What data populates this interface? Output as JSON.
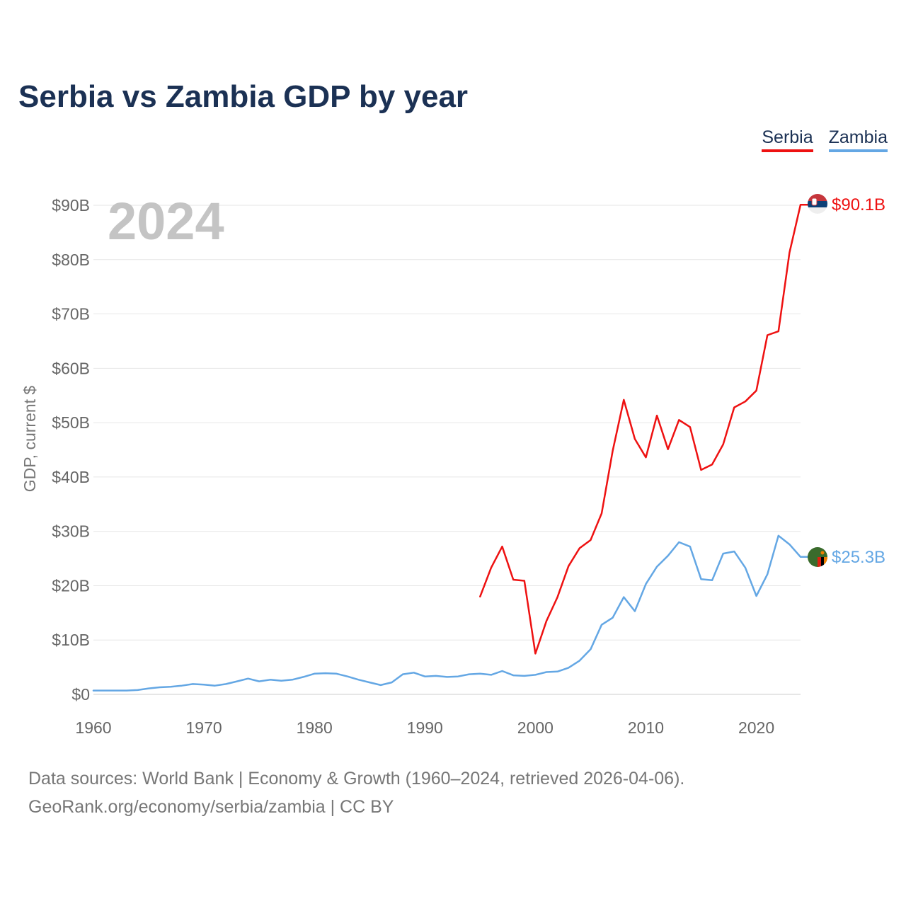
{
  "title": "Serbia vs Zambia GDP by year",
  "legend": {
    "serbia": "Serbia",
    "zambia": "Zambia"
  },
  "year_watermark": "2024",
  "source": {
    "line1": "Data sources: World Bank | Economy & Growth (1960–2024, retrieved 2026-04-06).",
    "line2": "GeoRank.org/economy/serbia/zambia | CC BY"
  },
  "colors": {
    "serbia": "#ee1111",
    "zambia": "#64a7e4",
    "title": "#1b3154",
    "axis_text": "#666666",
    "grid": "#e6e6e6"
  },
  "chart_data": {
    "type": "line",
    "title": "Serbia vs Zambia GDP by year",
    "xlabel": "",
    "ylabel": "GDP, current $",
    "xlim": [
      1960,
      2024
    ],
    "ylim": [
      0,
      90
    ],
    "x_ticks": [
      1960,
      1970,
      1980,
      1990,
      2000,
      2010,
      2020
    ],
    "x_tick_labels": [
      "1960",
      "1970",
      "1980",
      "1990",
      "2000",
      "2010",
      "2020"
    ],
    "y_ticks": [
      0,
      10,
      20,
      30,
      40,
      50,
      60,
      70,
      80,
      90
    ],
    "y_tick_labels": [
      "$0",
      "$10B",
      "$20B",
      "$30B",
      "$40B",
      "$50B",
      "$60B",
      "$70B",
      "$80B",
      "$90B"
    ],
    "units": "billions of current US$",
    "series": [
      {
        "name": "Serbia",
        "color": "#ee1111",
        "end_label": "$90.1B",
        "points": [
          [
            1995,
            18.0
          ],
          [
            1996,
            23.3
          ],
          [
            1997,
            27.2
          ],
          [
            1998,
            21.1
          ],
          [
            1999,
            20.9
          ],
          [
            2000,
            7.5
          ],
          [
            2001,
            13.5
          ],
          [
            2002,
            17.9
          ],
          [
            2003,
            23.6
          ],
          [
            2004,
            26.9
          ],
          [
            2005,
            28.4
          ],
          [
            2006,
            33.3
          ],
          [
            2007,
            44.8
          ],
          [
            2008,
            54.2
          ],
          [
            2009,
            47.0
          ],
          [
            2010,
            43.6
          ],
          [
            2011,
            51.3
          ],
          [
            2012,
            45.1
          ],
          [
            2013,
            50.5
          ],
          [
            2014,
            49.2
          ],
          [
            2015,
            41.3
          ],
          [
            2016,
            42.3
          ],
          [
            2017,
            46.0
          ],
          [
            2018,
            52.8
          ],
          [
            2019,
            53.9
          ],
          [
            2020,
            55.9
          ],
          [
            2021,
            66.1
          ],
          [
            2022,
            66.8
          ],
          [
            2023,
            81.3
          ],
          [
            2024,
            90.1
          ]
        ]
      },
      {
        "name": "Zambia",
        "color": "#64a7e4",
        "end_label": "$25.3B",
        "points": [
          [
            1960,
            0.7
          ],
          [
            1961,
            0.7
          ],
          [
            1962,
            0.7
          ],
          [
            1963,
            0.7
          ],
          [
            1964,
            0.8
          ],
          [
            1965,
            1.1
          ],
          [
            1966,
            1.3
          ],
          [
            1967,
            1.4
          ],
          [
            1968,
            1.6
          ],
          [
            1969,
            1.9
          ],
          [
            1970,
            1.8
          ],
          [
            1971,
            1.6
          ],
          [
            1972,
            1.9
          ],
          [
            1973,
            2.4
          ],
          [
            1974,
            2.9
          ],
          [
            1975,
            2.4
          ],
          [
            1976,
            2.7
          ],
          [
            1977,
            2.5
          ],
          [
            1978,
            2.7
          ],
          [
            1979,
            3.2
          ],
          [
            1980,
            3.8
          ],
          [
            1981,
            3.9
          ],
          [
            1982,
            3.8
          ],
          [
            1983,
            3.3
          ],
          [
            1984,
            2.7
          ],
          [
            1985,
            2.2
          ],
          [
            1986,
            1.7
          ],
          [
            1987,
            2.2
          ],
          [
            1988,
            3.7
          ],
          [
            1989,
            4.0
          ],
          [
            1990,
            3.3
          ],
          [
            1991,
            3.4
          ],
          [
            1992,
            3.2
          ],
          [
            1993,
            3.3
          ],
          [
            1994,
            3.7
          ],
          [
            1995,
            3.8
          ],
          [
            1996,
            3.6
          ],
          [
            1997,
            4.3
          ],
          [
            1998,
            3.5
          ],
          [
            1999,
            3.4
          ],
          [
            2000,
            3.6
          ],
          [
            2001,
            4.1
          ],
          [
            2002,
            4.2
          ],
          [
            2003,
            4.9
          ],
          [
            2004,
            6.2
          ],
          [
            2005,
            8.3
          ],
          [
            2006,
            12.8
          ],
          [
            2007,
            14.1
          ],
          [
            2008,
            17.9
          ],
          [
            2009,
            15.3
          ],
          [
            2010,
            20.3
          ],
          [
            2011,
            23.5
          ],
          [
            2012,
            25.5
          ],
          [
            2013,
            28.0
          ],
          [
            2014,
            27.2
          ],
          [
            2015,
            21.2
          ],
          [
            2016,
            21.0
          ],
          [
            2017,
            25.9
          ],
          [
            2018,
            26.3
          ],
          [
            2019,
            23.3
          ],
          [
            2020,
            18.1
          ],
          [
            2021,
            22.1
          ],
          [
            2022,
            29.2
          ],
          [
            2023,
            27.6
          ],
          [
            2024,
            25.3
          ]
        ]
      }
    ]
  }
}
